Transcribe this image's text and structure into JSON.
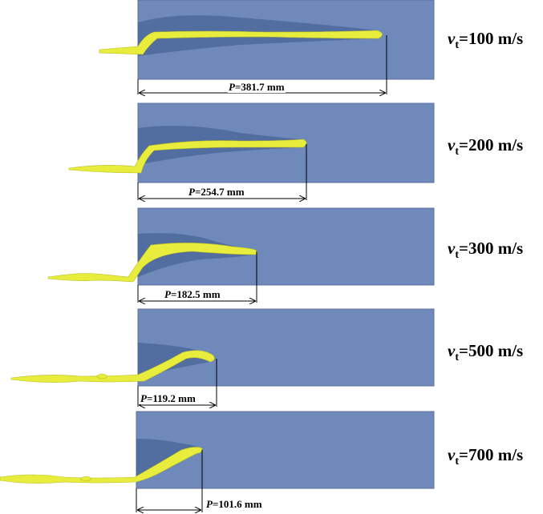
{
  "panels": [
    {
      "velocity": "100",
      "unit": "m/s",
      "symbol": "v",
      "subscript": "t",
      "penetration": "381.7",
      "penetration_unit": "mm",
      "p_symbol": "P"
    },
    {
      "velocity": "200",
      "unit": "m/s",
      "symbol": "v",
      "subscript": "t",
      "penetration": "254.7",
      "penetration_unit": "mm",
      "p_symbol": "P"
    },
    {
      "velocity": "300",
      "unit": "m/s",
      "symbol": "v",
      "subscript": "t",
      "penetration": "182.5",
      "penetration_unit": "mm",
      "p_symbol": "P"
    },
    {
      "velocity": "500",
      "unit": "m/s",
      "symbol": "v",
      "subscript": "t",
      "penetration": "119.2",
      "penetration_unit": "mm",
      "p_symbol": "P"
    },
    {
      "velocity": "700",
      "unit": "m/s",
      "symbol": "v",
      "subscript": "t",
      "penetration": "101.6",
      "penetration_unit": "mm",
      "p_symbol": "P"
    }
  ],
  "colors": {
    "target": "#7089bb",
    "target_border": "#5b6f9e",
    "jet": "#e8ec3c",
    "jet_edge": "#b9bd1f",
    "damage": "#3e5a8c"
  }
}
